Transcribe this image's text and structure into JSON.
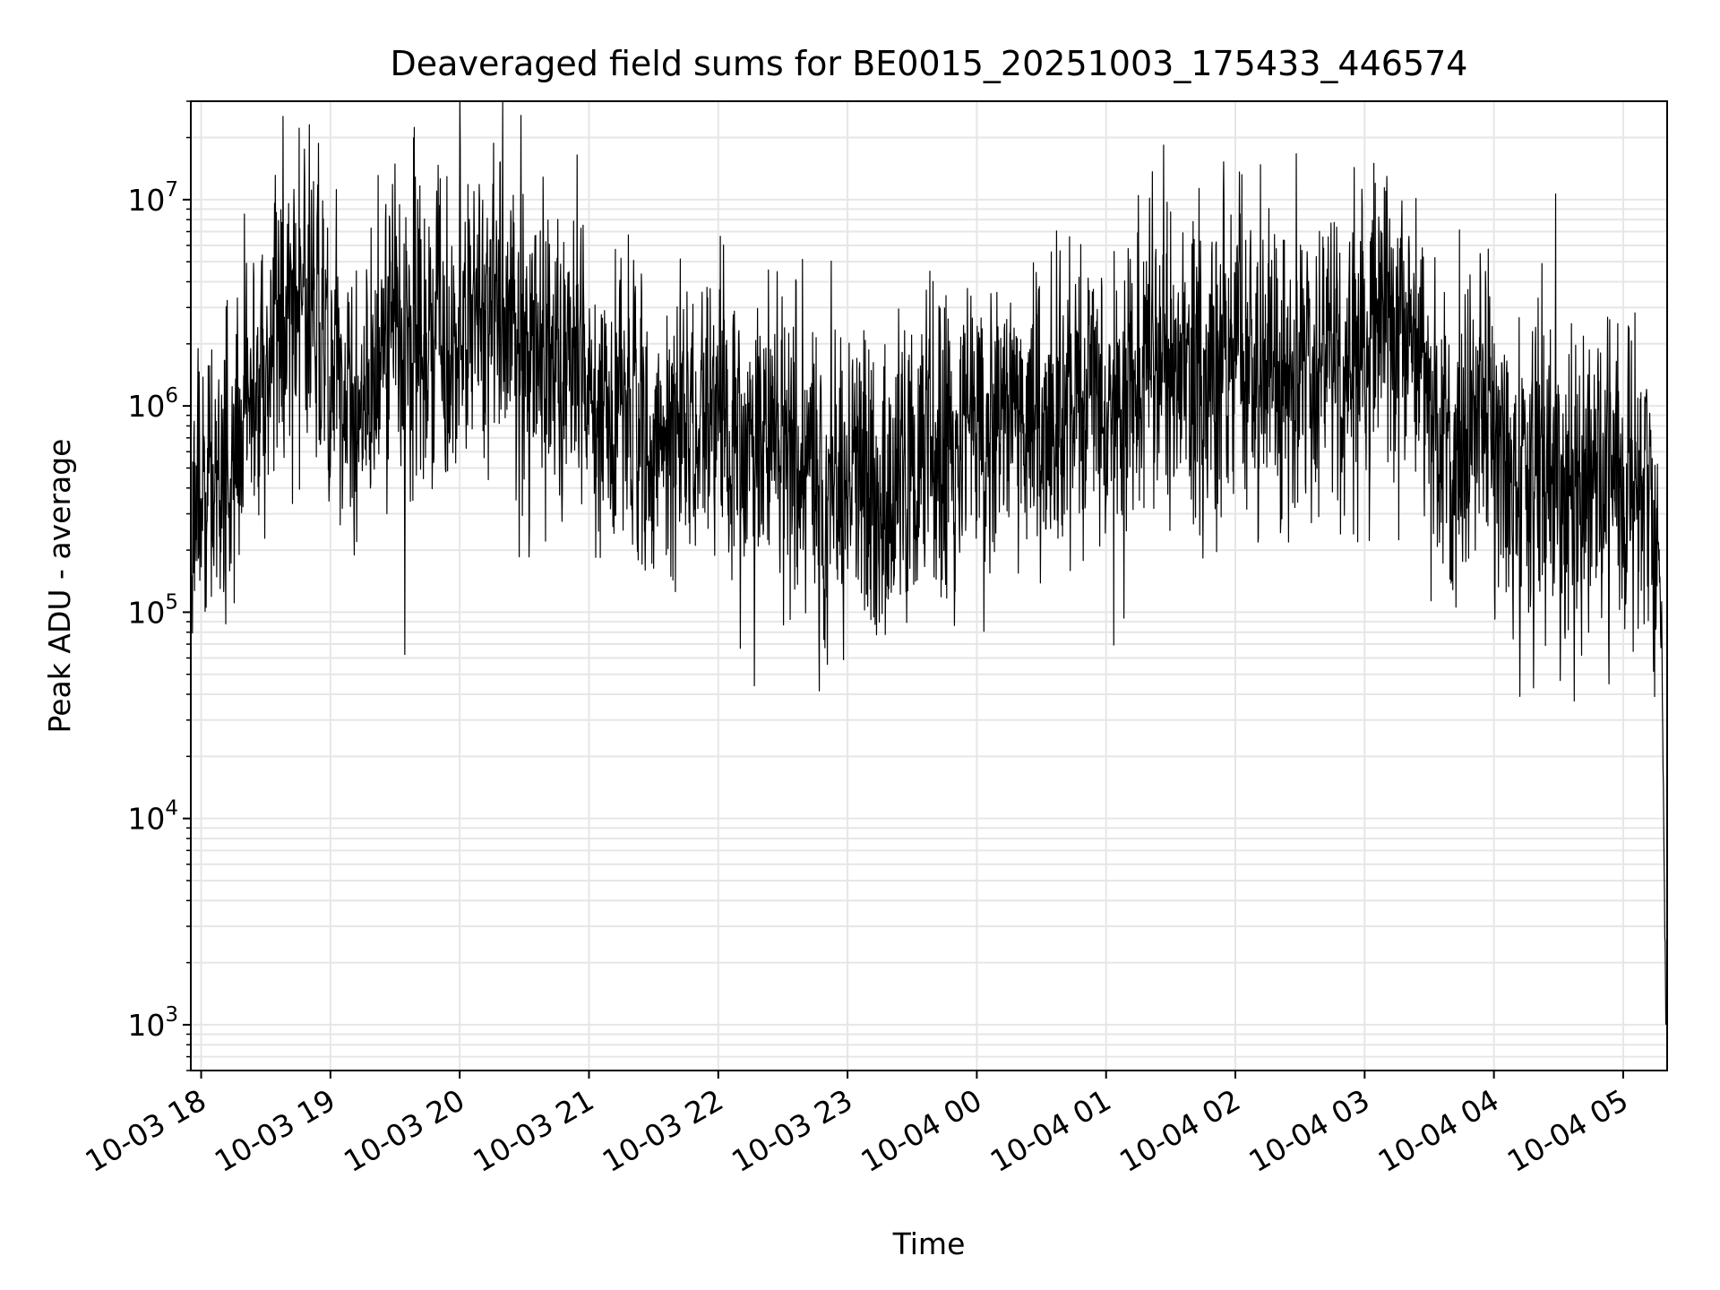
{
  "chart_data": {
    "type": "line",
    "title": "Deaveraged field sums for BE0015_20251003_175433_446574",
    "xlabel": "Time",
    "ylabel": "Peak ADU - average",
    "yscale": "log",
    "ylim": [
      600,
      30000000
    ],
    "xlim_hours": [
      -0.08,
      11.34
    ],
    "x_tick_labels": [
      "10-03 18",
      "10-03 19",
      "10-03 20",
      "10-03 21",
      "10-03 22",
      "10-03 23",
      "10-04 00",
      "10-04 01",
      "10-04 02",
      "10-04 03",
      "10-04 04",
      "10-04 05"
    ],
    "x_tick_hours": [
      0,
      1,
      2,
      3,
      4,
      5,
      6,
      7,
      8,
      9,
      10,
      11
    ],
    "y_ticks": [
      {
        "value": 1000,
        "base": "10",
        "exp": "3"
      },
      {
        "value": 10000,
        "base": "10",
        "exp": "4"
      },
      {
        "value": 100000,
        "base": "10",
        "exp": "5"
      },
      {
        "value": 1000000,
        "base": "10",
        "exp": "6"
      },
      {
        "value": 10000000,
        "base": "10",
        "exp": "7"
      }
    ],
    "grid": true,
    "line_color": "#000000",
    "grid_color": "#e6e6e6",
    "series": [
      {
        "name": "Peak ADU - average",
        "noise_decades": 0.34,
        "trend_hours": [
          -0.07,
          0.0,
          0.2,
          0.35,
          0.5,
          0.7,
          0.9,
          1.0,
          1.15,
          1.3,
          1.5,
          1.7,
          1.9,
          2.1,
          2.3,
          2.5,
          2.8,
          3.0,
          3.3,
          3.6,
          4.0,
          4.4,
          4.7,
          5.0,
          5.3,
          5.6,
          5.9,
          6.2,
          6.6,
          7.0,
          7.3,
          7.6,
          8.0,
          8.4,
          8.8,
          9.1,
          9.4,
          9.6,
          9.75,
          9.9,
          10.1,
          10.4,
          10.7,
          10.9,
          11.0,
          11.12,
          11.2,
          11.27,
          11.3,
          11.33
        ],
        "trend_values": [
          350000,
          400000,
          500000,
          900000,
          2200000,
          3000000,
          2500000,
          1200000,
          800000,
          1500000,
          2500000,
          3000000,
          2000000,
          3500000,
          2800000,
          2000000,
          1500000,
          1500000,
          900000,
          700000,
          800000,
          600000,
          500000,
          450000,
          450000,
          500000,
          700000,
          900000,
          900000,
          1200000,
          1300000,
          1500000,
          1500000,
          1500000,
          1500000,
          2200000,
          2000000,
          500000,
          600000,
          900000,
          500000,
          450000,
          400000,
          450000,
          380000,
          350000,
          500000,
          250000,
          60000,
          1000
        ]
      }
    ]
  }
}
